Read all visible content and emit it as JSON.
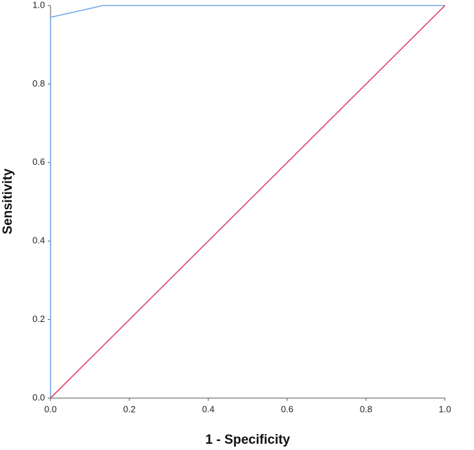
{
  "chart_data": {
    "type": "line",
    "xlabel": "1 - Specificity",
    "ylabel": "Sensitivity",
    "xlim": [
      0,
      1
    ],
    "ylim": [
      0,
      1
    ],
    "xticks": [
      {
        "value": 0,
        "label": "0.0"
      },
      0.2,
      0.4,
      0.6,
      0.8,
      {
        "value": 1,
        "label": "1.0"
      }
    ],
    "yticks": [
      {
        "value": 0,
        "label": "0.0"
      },
      0.2,
      0.4,
      0.6,
      0.8,
      {
        "value": 1,
        "label": "1.0"
      }
    ],
    "series": [
      {
        "color": "#74a9e6",
        "x": [
          0,
          0,
          0.133,
          1
        ],
        "values": [
          0,
          0.97,
          1,
          1
        ]
      },
      {
        "color": "#e0456a",
        "x": [
          0,
          1
        ],
        "values": [
          0,
          1
        ]
      }
    ]
  }
}
